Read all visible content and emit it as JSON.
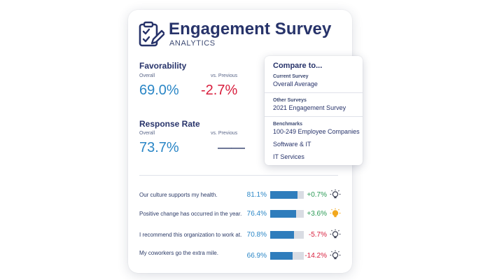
{
  "header": {
    "title": "Engagement Survey",
    "subtitle": "ANALYTICS",
    "logo_icon": "survey-clipboard-icon"
  },
  "metrics": {
    "favorability": {
      "title": "Favorability",
      "overall_label": "Overall",
      "overall_value": "69.0%",
      "previous_label": "vs. Previous",
      "previous_value": "-2.7%"
    },
    "response_rate": {
      "title": "Response Rate",
      "overall_label": "Overall",
      "overall_value": "73.7%",
      "previous_label": "vs. Previous",
      "previous_value": "——"
    }
  },
  "questions": [
    {
      "text": "Our culture supports my health.",
      "value": "81.1%",
      "fraction": 0.811,
      "delta": "+0.7%",
      "delta_color": "#2a9a55",
      "bulb_lit": false
    },
    {
      "text": "Positive change has occurred in the year.",
      "value": "76.4%",
      "fraction": 0.764,
      "delta": "+3.6%",
      "delta_color": "#2a9a55",
      "bulb_lit": true
    },
    {
      "text": "I recommend this organization to work at.",
      "value": "70.8%",
      "fraction": 0.708,
      "delta": "-5.7%",
      "delta_color": "#d81e3d",
      "bulb_lit": false
    },
    {
      "text": "My coworkers go the extra mile.",
      "value": "66.9%",
      "fraction": 0.669,
      "delta": "-14.2%",
      "delta_color": "#d81e3d",
      "bulb_lit": false
    }
  ],
  "compare": {
    "title": "Compare to...",
    "current_label": "Current Survey",
    "current_item": "Overall Average",
    "other_label": "Other Surveys",
    "other_item": "2021 Engagement Survey",
    "bench_label": "Benchmarks",
    "bench_items": [
      "100-249 Employee Companies",
      "Software & IT",
      "IT Services"
    ]
  },
  "colors": {
    "accent": "#2a86c6",
    "negative": "#d81e3d",
    "positive": "#2a9a55",
    "bar_fill": "#2f7dbc",
    "bar_track": "#d9dce3",
    "bulb_lit": "#f2a81d"
  }
}
